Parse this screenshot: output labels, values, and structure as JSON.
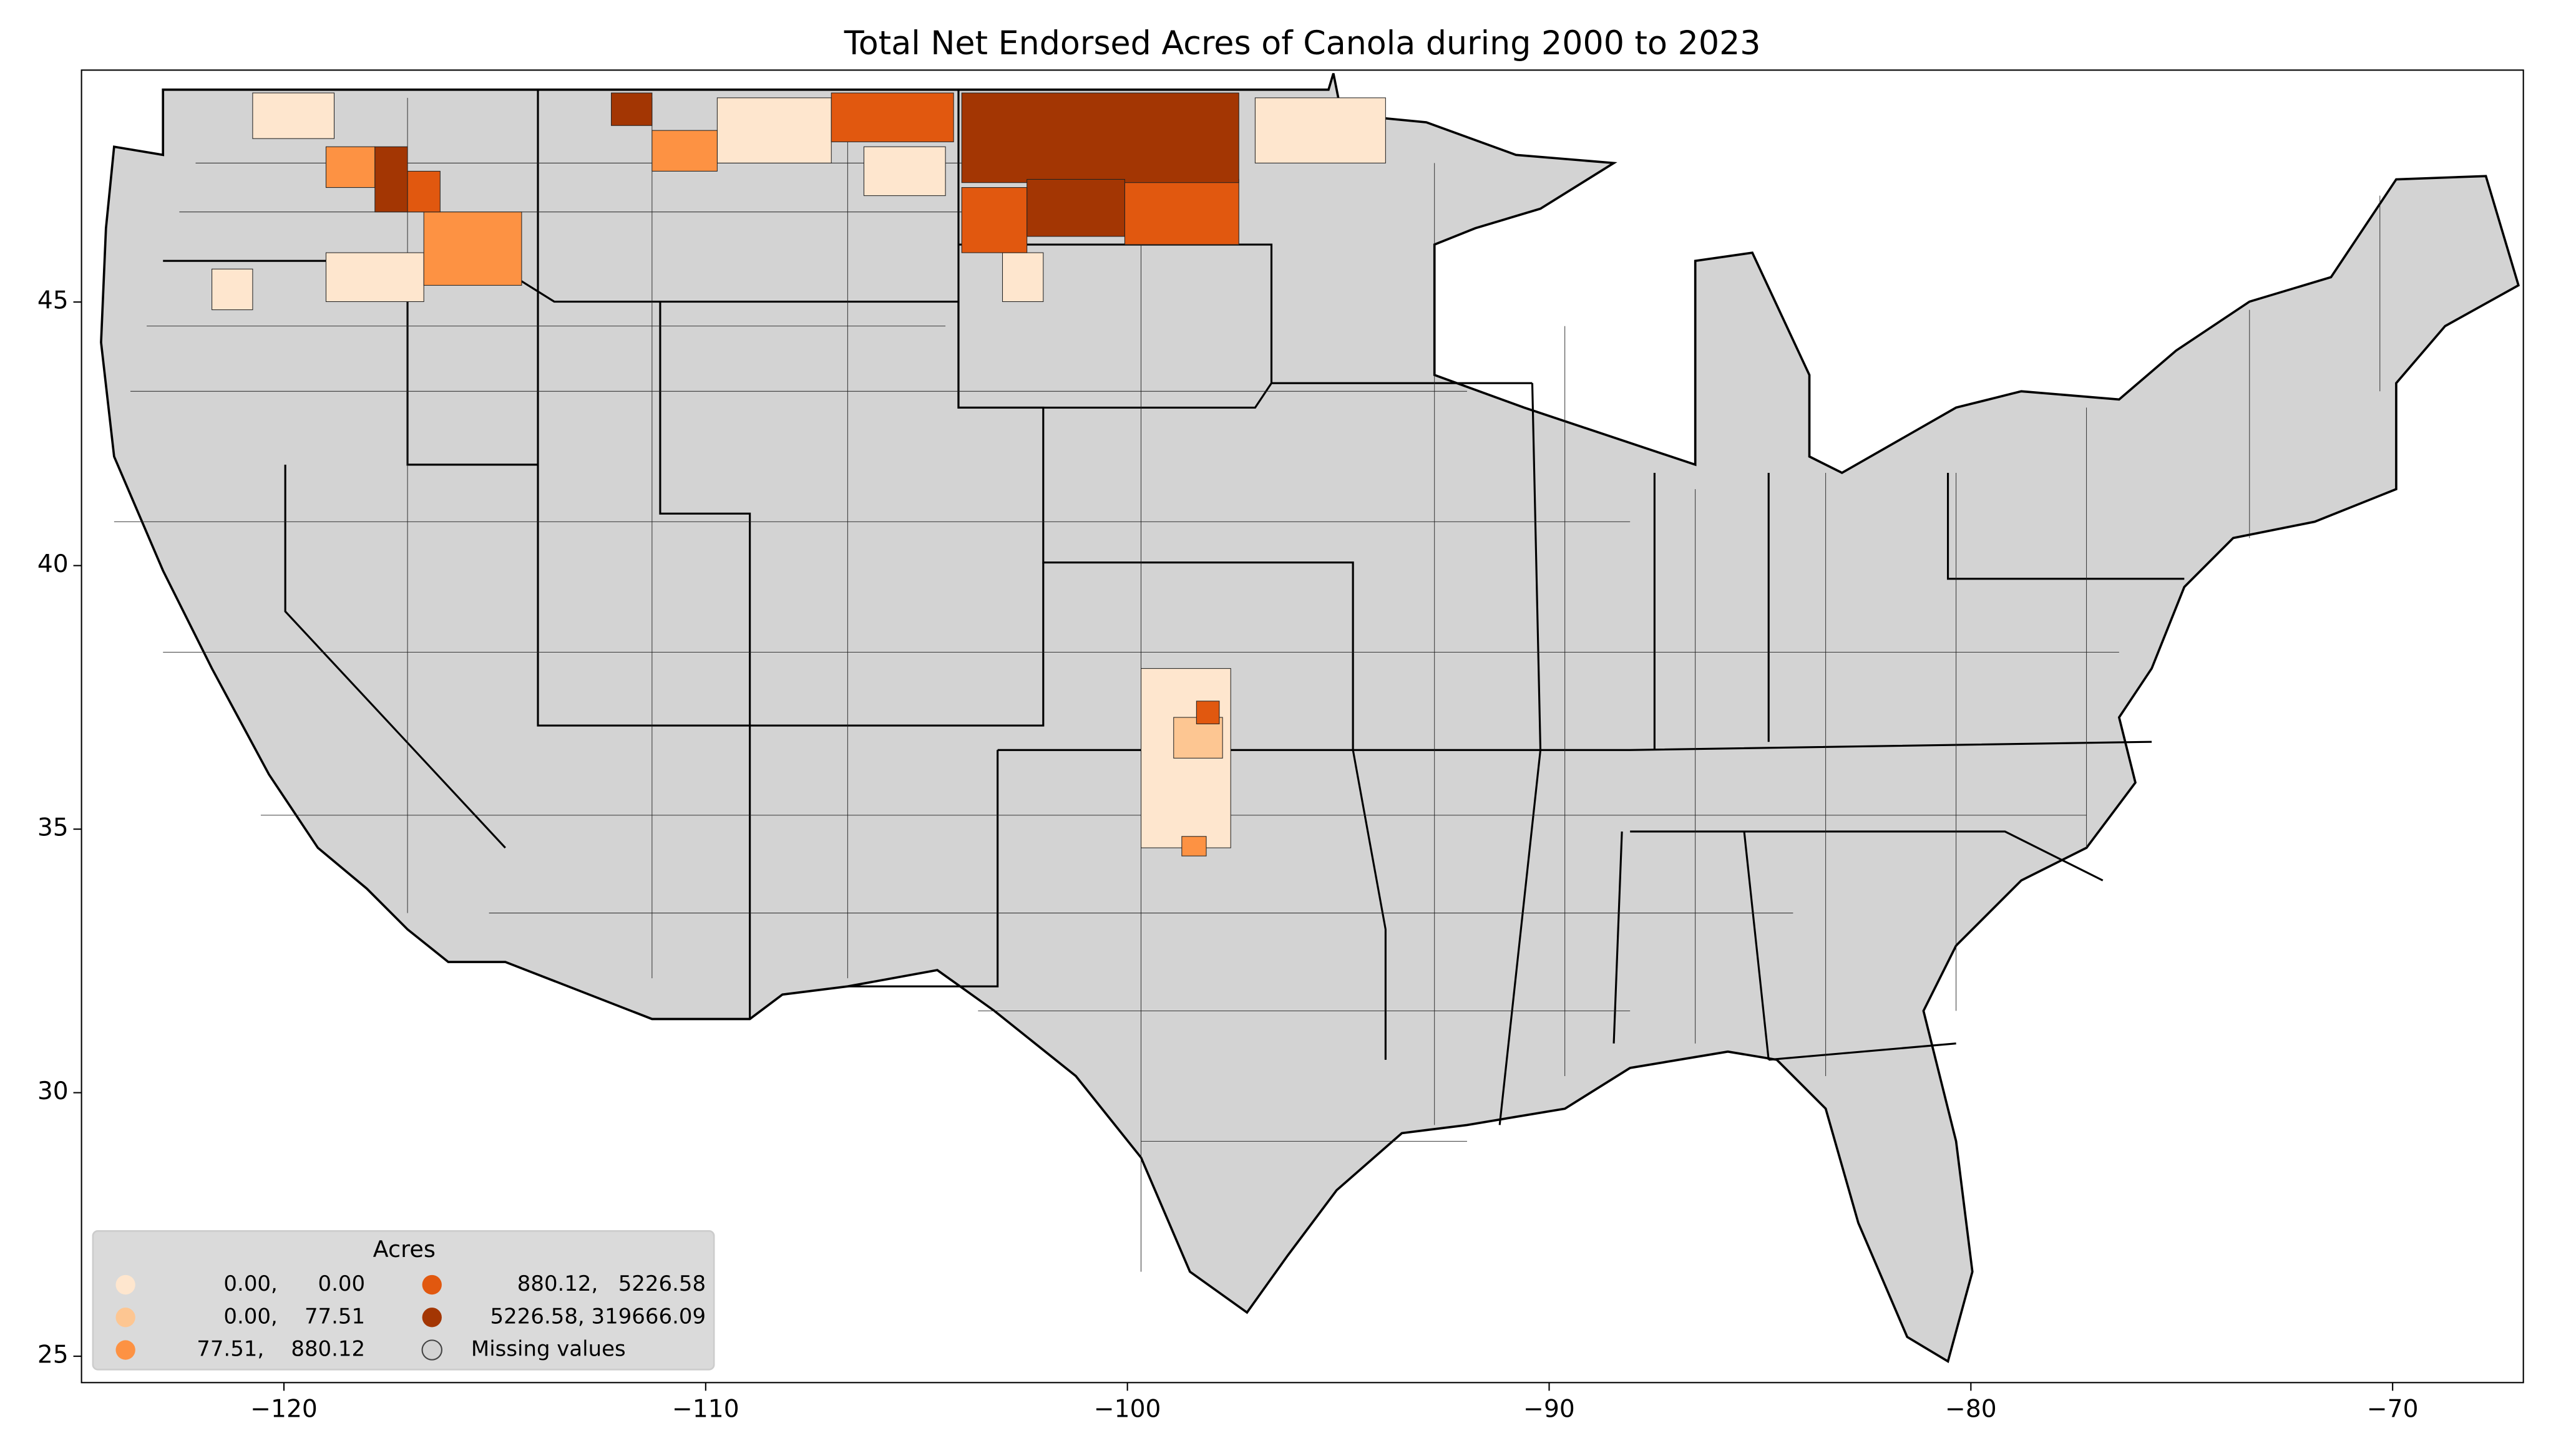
{
  "chart_data": {
    "type": "choropleth",
    "title": "Total Net Endorsed Acres of Canola during 2000 to 2023",
    "xlim": [
      -124.8,
      -66.9
    ],
    "ylim": [
      24.5,
      49.4
    ],
    "xticks": [
      {
        "value": -120,
        "label": "−120"
      },
      {
        "value": -110,
        "label": "−110"
      },
      {
        "value": -100,
        "label": "−100"
      },
      {
        "value": -90,
        "label": "−90"
      },
      {
        "value": -80,
        "label": "−80"
      },
      {
        "value": -70,
        "label": "−70"
      }
    ],
    "yticks": [
      25,
      30,
      35,
      40,
      45
    ],
    "legend": {
      "title": "Acres",
      "corner": "lower left",
      "entries": [
        {
          "label": "0.00,      0.00",
          "color": "#fee6ce"
        },
        {
          "label": "0.00,    77.51",
          "color": "#fdc692"
        },
        {
          "label": "77.51,    880.12",
          "color": "#fd9243"
        },
        {
          "label": "880.12,   5226.58",
          "color": "#e1580f"
        },
        {
          "label": "5226.58, 319666.09",
          "color": "#a33603"
        },
        {
          "label": "Missing values",
          "color": "#d3d3d3"
        }
      ]
    }
  }
}
